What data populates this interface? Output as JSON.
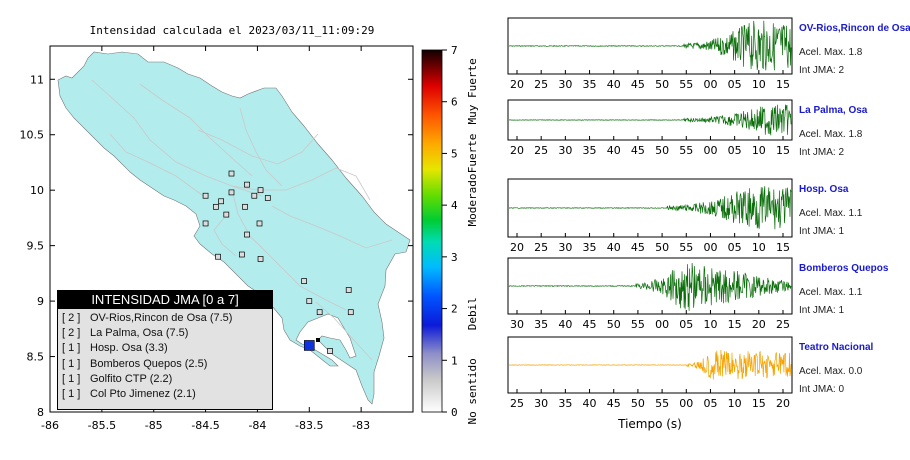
{
  "map": {
    "title": "Intensidad calculada el 2023/03/11_11:09:29",
    "x_ticks": [
      "-86",
      "-85.5",
      "-85",
      "-84.5",
      "-84",
      "-83.5",
      "-83"
    ],
    "y_ticks": [
      "11",
      "10.5",
      "10",
      "9.5",
      "9",
      "8.5",
      "8"
    ],
    "land_color": "#b3ecec",
    "epicenter_color": "#1133dd"
  },
  "colorbar": {
    "tick_labels": [
      "0",
      "1",
      "2",
      "3",
      "4",
      "5",
      "6",
      "7"
    ],
    "categories": [
      "No sentido",
      "Debil",
      "Moderado",
      "Fuerte",
      "Muy Fuerte"
    ]
  },
  "legend_panel": {
    "title": "INTENSIDAD JMA [0 a 7]",
    "entries": [
      {
        "level": "[ 2 ]",
        "station": "OV-Rios,Rincon de Osa (7.5)"
      },
      {
        "level": "[ 2 ]",
        "station": "La Palma, Osa (7.5)"
      },
      {
        "level": "[ 1 ]",
        "station": "Hosp. Osa (3.3)"
      },
      {
        "level": "[ 1 ]",
        "station": "Bomberos Quepos (2.5)"
      },
      {
        "level": "[ 1 ]",
        "station": "Golfito CTP (2.2)"
      },
      {
        "level": "[ 1 ]",
        "station": "Col Pto Jimenez (2.1)"
      }
    ]
  },
  "traces": [
    {
      "name": "OV-Rios,Rincon de Osa",
      "accel": "Acel. Max. 1.8",
      "jma": "Int JMA: 2",
      "ticks": [
        "20",
        "25",
        "30",
        "35",
        "40",
        "45",
        "50",
        "55",
        "00",
        "05",
        "10",
        "15"
      ],
      "color": "#0b6e0b"
    },
    {
      "name": "La Palma, Osa",
      "accel": "Acel. Max. 1.8",
      "jma": "Int JMA: 2",
      "ticks": [
        "20",
        "25",
        "30",
        "35",
        "40",
        "45",
        "50",
        "55",
        "00",
        "05",
        "10",
        "15"
      ],
      "color": "#0b6e0b"
    },
    {
      "name": "Hosp. Osa",
      "accel": "Acel. Max. 1.1",
      "jma": "Int JMA: 1",
      "ticks": [
        "20",
        "25",
        "30",
        "35",
        "40",
        "45",
        "50",
        "55",
        "00",
        "05",
        "10",
        "15"
      ],
      "color": "#0b6e0b"
    },
    {
      "name": "Bomberos Quepos",
      "accel": "Acel. Max. 1.1",
      "jma": "Int JMA: 1",
      "ticks": [
        "30",
        "35",
        "40",
        "45",
        "50",
        "55",
        "00",
        "05",
        "10",
        "15",
        "20",
        "25"
      ],
      "color": "#0b6e0b"
    },
    {
      "name": "Teatro Nacional",
      "accel": "Acel. Max. 0.0",
      "jma": "Int JMA: 0",
      "ticks": [
        "25",
        "30",
        "35",
        "40",
        "45",
        "50",
        "55",
        "00",
        "05",
        "10",
        "15",
        "20"
      ],
      "color": "#f5a300"
    }
  ],
  "xlabel": "Tiempo (s)",
  "chart_data": [
    {
      "type": "scatter",
      "title": "Intensidad calculada el 2023/03/11_11:09:29",
      "xlabel": "",
      "ylabel": "",
      "xlim": [
        -86,
        -82.5
      ],
      "ylim": [
        8,
        11.3
      ],
      "epicenter": {
        "lon": -83.5,
        "lat": 8.6
      },
      "stations": [
        {
          "lon": -84.25,
          "lat": 10.15
        },
        {
          "lon": -84.1,
          "lat": 10.05
        },
        {
          "lon": -84.35,
          "lat": 9.9
        },
        {
          "lon": -84.03,
          "lat": 9.95
        },
        {
          "lon": -83.97,
          "lat": 10.0
        },
        {
          "lon": -84.5,
          "lat": 9.95
        },
        {
          "lon": -84.25,
          "lat": 9.98
        },
        {
          "lon": -84.12,
          "lat": 9.85
        },
        {
          "lon": -83.9,
          "lat": 9.93
        },
        {
          "lon": -83.98,
          "lat": 9.7
        },
        {
          "lon": -84.4,
          "lat": 9.85
        },
        {
          "lon": -84.3,
          "lat": 9.78
        },
        {
          "lon": -84.38,
          "lat": 9.4
        },
        {
          "lon": -84.1,
          "lat": 9.6
        },
        {
          "lon": -84.5,
          "lat": 9.7
        },
        {
          "lon": -84.15,
          "lat": 9.42
        },
        {
          "lon": -83.97,
          "lat": 9.38
        },
        {
          "lon": -83.5,
          "lat": 9.0
        },
        {
          "lon": -83.12,
          "lat": 9.1
        },
        {
          "lon": -83.1,
          "lat": 8.9
        },
        {
          "lon": -83.4,
          "lat": 8.9
        },
        {
          "lon": -83.3,
          "lat": 8.55
        },
        {
          "lon": -83.55,
          "lat": 9.18
        }
      ]
    },
    {
      "type": "line",
      "xlabel": "Tiempo (s)",
      "series": [
        {
          "name": "OV-Rios,Rincon de Osa",
          "peak_accel": 1.8,
          "intensity_jma": 2
        },
        {
          "name": "La Palma, Osa",
          "peak_accel": 1.8,
          "intensity_jma": 2
        },
        {
          "name": "Hosp. Osa",
          "peak_accel": 1.1,
          "intensity_jma": 1
        },
        {
          "name": "Bomberos Quepos",
          "peak_accel": 1.1,
          "intensity_jma": 1
        },
        {
          "name": "Teatro Nacional",
          "peak_accel": 0.0,
          "intensity_jma": 0
        }
      ]
    }
  ]
}
